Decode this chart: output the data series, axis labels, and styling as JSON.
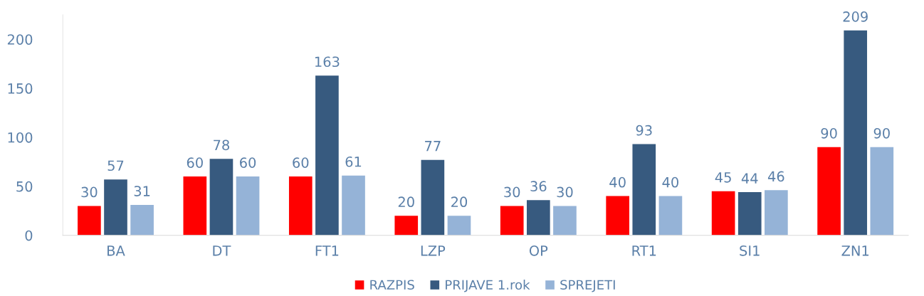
{
  "chart_data": {
    "type": "bar",
    "categories": [
      "BA",
      "DT",
      "FT1",
      "LZP",
      "OP",
      "RT1",
      "SI1",
      "ZN1"
    ],
    "series": [
      {
        "name": "RAZPIS",
        "color": "#ff0000",
        "values": [
          30,
          60,
          60,
          20,
          30,
          40,
          45,
          90
        ]
      },
      {
        "name": "PRIJAVE 1.rok",
        "color": "#375a7f",
        "values": [
          57,
          78,
          163,
          77,
          36,
          93,
          44,
          209
        ]
      },
      {
        "name": "SPREJETI",
        "color": "#95b3d7",
        "values": [
          31,
          60,
          61,
          20,
          30,
          40,
          46,
          90
        ]
      }
    ],
    "ylim": [
      0,
      225
    ],
    "yticks": [
      0,
      50,
      100,
      150,
      200
    ],
    "data_labels": true,
    "grid": false,
    "legend": "bottom"
  }
}
